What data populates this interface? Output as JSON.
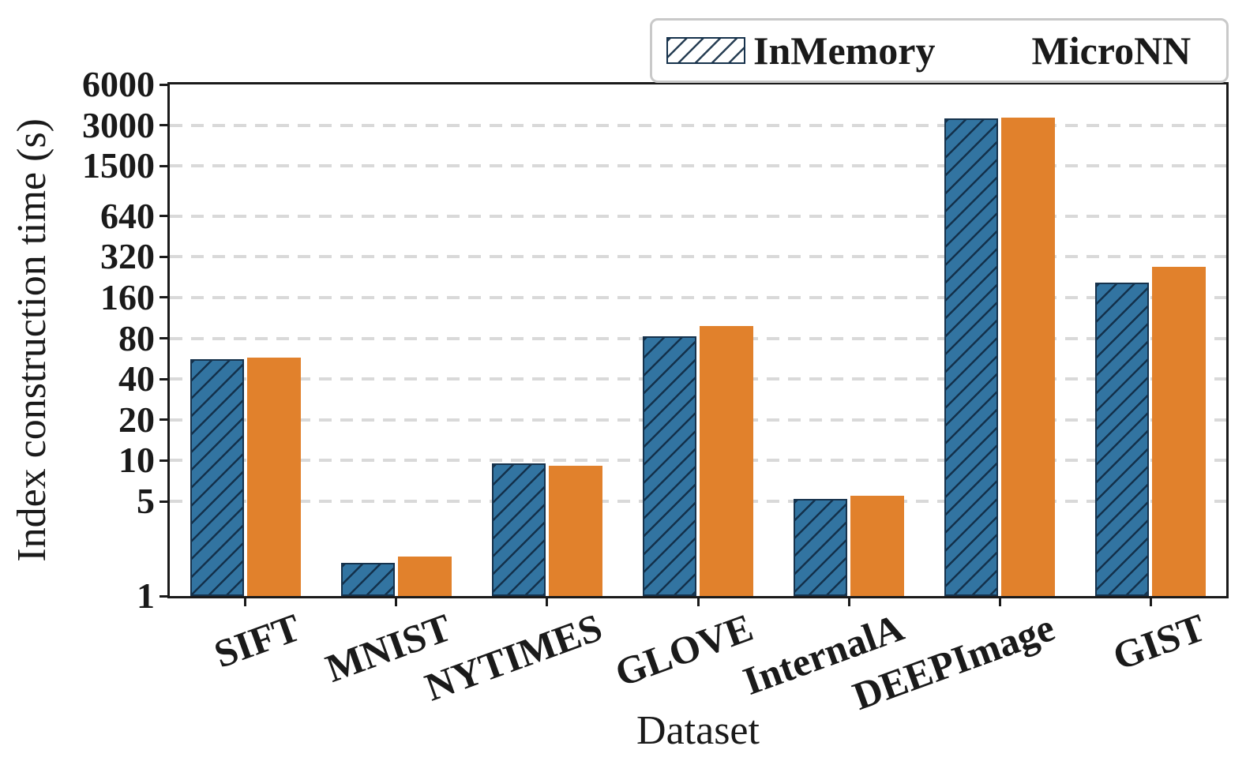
{
  "figure": {
    "background": "#ffffff"
  },
  "chart_data": {
    "type": "bar",
    "title": "",
    "xlabel": "Dataset",
    "ylabel": "Index construction time (s)",
    "yscale": "log",
    "ylim": [
      1,
      6000
    ],
    "yticks": [
      6000,
      3000,
      1500,
      640,
      320,
      160,
      80,
      40,
      20,
      10,
      5,
      1
    ],
    "categories": [
      "SIFT",
      "MNIST",
      "NYTIMES",
      "GLOVE",
      "InternalA",
      "DEEPImage",
      "GIST"
    ],
    "series": [
      {
        "name": "InMemory",
        "color": "#3274a1",
        "hatch": "//",
        "values": [
          56,
          1.75,
          9.5,
          83,
          5.2,
          3350,
          207
        ]
      },
      {
        "name": "MicroNN",
        "color": "#e1812c",
        "hatch": null,
        "values": [
          58,
          1.95,
          9.2,
          98,
          5.5,
          3400,
          270
        ]
      }
    ],
    "grid": {
      "axis": "y",
      "style": "dashed",
      "color": "#d9d9d9"
    },
    "legend": {
      "position": "upper right",
      "entries": [
        "InMemory",
        "MicroNN"
      ]
    }
  },
  "colors": {
    "bar_inmemory": "#3274a1",
    "bar_micronn": "#e1812c",
    "hatch": "#16324c",
    "axis": "#1a1a1a",
    "grid": "#d9d9d9",
    "legend_border": "#c9c9c9",
    "text": "#1a1a1a",
    "background": "#ffffff"
  }
}
